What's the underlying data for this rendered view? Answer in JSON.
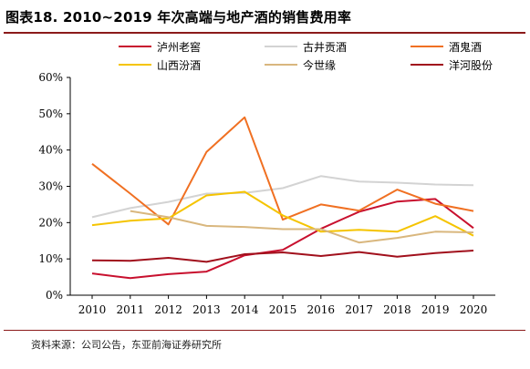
{
  "figure": {
    "title": "图表18.  2010~2019 年次高端与地产酒的销售费用率",
    "source": "资料来源：公司公告，东亚前海证券研究所"
  },
  "chart_data": {
    "type": "line",
    "x": [
      2010,
      2011,
      2012,
      2013,
      2014,
      2015,
      2016,
      2017,
      2018,
      2019,
      2020
    ],
    "x_tick_labels": [
      "2010",
      "2011",
      "2012",
      "2013",
      "2014",
      "2015",
      "2016",
      "2017",
      "2018",
      "2019",
      "2020"
    ],
    "ylim": [
      0,
      60
    ],
    "y_ticks": [
      0,
      10,
      20,
      30,
      40,
      50,
      60
    ],
    "y_tick_labels": [
      "0%",
      "10%",
      "20%",
      "30%",
      "40%",
      "50%",
      "60%"
    ],
    "y_format": "percent",
    "grid": false,
    "legend_position": "top",
    "series": [
      {
        "name": "泸州老窖",
        "color": "#c8102e",
        "values": [
          6.0,
          4.7,
          5.8,
          6.5,
          11.0,
          12.5,
          18.3,
          23.0,
          25.8,
          26.5,
          18.5
        ]
      },
      {
        "name": "古井贡酒",
        "color": "#d3d3d3",
        "values": [
          21.5,
          24.0,
          25.7,
          28.0,
          28.2,
          29.5,
          32.8,
          31.3,
          31.0,
          30.5,
          30.3
        ]
      },
      {
        "name": "酒鬼酒",
        "color": "#f07022",
        "values": [
          36.2,
          28.0,
          19.5,
          39.5,
          49.0,
          20.8,
          25.0,
          23.3,
          29.1,
          25.2,
          23.2
        ]
      },
      {
        "name": "山西汾酒",
        "color": "#f5c400",
        "values": [
          19.3,
          20.5,
          21.2,
          27.5,
          28.5,
          22.0,
          17.5,
          18.0,
          17.5,
          21.8,
          16.4
        ]
      },
      {
        "name": "今世缘",
        "color": "#d9b77e",
        "values": [
          null,
          23.2,
          21.5,
          19.1,
          18.8,
          18.2,
          18.2,
          14.5,
          15.8,
          17.5,
          17.3
        ]
      },
      {
        "name": "洋河股份",
        "color": "#a1101c",
        "values": [
          9.6,
          9.5,
          10.3,
          9.2,
          11.3,
          11.8,
          10.8,
          11.9,
          10.6,
          11.6,
          12.3
        ]
      }
    ]
  }
}
